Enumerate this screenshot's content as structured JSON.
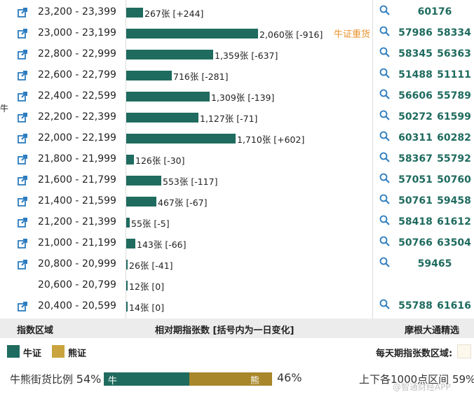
{
  "rows": [
    {
      "range": "23,200 - 23,399",
      "count": 267,
      "label": "267张 [+244]",
      "tag": "",
      "codes": [
        "60176"
      ],
      "link": true
    },
    {
      "range": "23,000 - 23,199",
      "count": 2060,
      "label": "2,060张 [-916]",
      "tag": "牛证重货",
      "codes": [
        "57986",
        "58334"
      ],
      "link": true
    },
    {
      "range": "22,800 - 22,999",
      "count": 1359,
      "label": "1,359张 [-637]",
      "tag": "",
      "codes": [
        "58345",
        "56363"
      ],
      "link": true
    },
    {
      "range": "22,600 - 22,799",
      "count": 716,
      "label": "716张 [-281]",
      "tag": "",
      "codes": [
        "51488",
        "51111"
      ],
      "link": true
    },
    {
      "range": "22,400 - 22,599",
      "count": 1309,
      "label": "1,309张 [-139]",
      "tag": "",
      "codes": [
        "56606",
        "55789"
      ],
      "link": true
    },
    {
      "range": "22,200 - 22,399",
      "count": 1127,
      "label": "1,127张 [-71]",
      "tag": "",
      "codes": [
        "50272",
        "61599"
      ],
      "link": true
    },
    {
      "range": "22,000 - 22,199",
      "count": 1710,
      "label": "1,710张 [+602]",
      "tag": "",
      "codes": [
        "60311",
        "60282"
      ],
      "link": true
    },
    {
      "range": "21,800 - 21,999",
      "count": 126,
      "label": "126张 [-30]",
      "tag": "",
      "codes": [
        "58367",
        "55792"
      ],
      "link": true
    },
    {
      "range": "21,600 - 21,799",
      "count": 553,
      "label": "553张 [-117]",
      "tag": "",
      "codes": [
        "57051",
        "50760"
      ],
      "link": true
    },
    {
      "range": "21,400 - 21,599",
      "count": 467,
      "label": "467张 [-67]",
      "tag": "",
      "codes": [
        "50761",
        "59458"
      ],
      "link": true
    },
    {
      "range": "21,200 - 21,399",
      "count": 55,
      "label": "55张 [-5]",
      "tag": "",
      "codes": [
        "58418",
        "61612"
      ],
      "link": true
    },
    {
      "range": "21,000 - 21,199",
      "count": 143,
      "label": "143张 [-66]",
      "tag": "",
      "codes": [
        "50766",
        "63504"
      ],
      "link": true
    },
    {
      "range": "20,800 - 20,999",
      "count": 26,
      "label": "26张 [-41]",
      "tag": "",
      "codes": [
        "59465"
      ],
      "link": true
    },
    {
      "range": "20,600 - 20,799",
      "count": 12,
      "label": "12张 [0]",
      "tag": "",
      "codes": [],
      "link": false
    },
    {
      "range": "20,400 - 20,599",
      "count": 14,
      "label": "14张 [0]",
      "tag": "",
      "codes": [
        "55788",
        "61616"
      ],
      "link": true
    }
  ],
  "edge_mark": "牛",
  "header": {
    "col1": "指数区域",
    "col2": "相对期指张数 [括号内为一日变化]",
    "col3": "摩根大通精选"
  },
  "legend": {
    "bull_label": "牛证",
    "bear_label": "熊证",
    "date_label": "每天期指张数区域:",
    "bull_color": "#1f6b5f",
    "bear_color": "#c9a33d"
  },
  "ratio": {
    "label": "牛熊街货比例",
    "bull_pct_text": "54%",
    "bear_pct_text": "46%",
    "bull_fraction": 0.54,
    "bull_bar_label": "牛",
    "bear_bar_label": "熊",
    "right_label": "上下各1000点区间",
    "right_pct": "59%"
  },
  "watermark": "@智通财经APP"
}
